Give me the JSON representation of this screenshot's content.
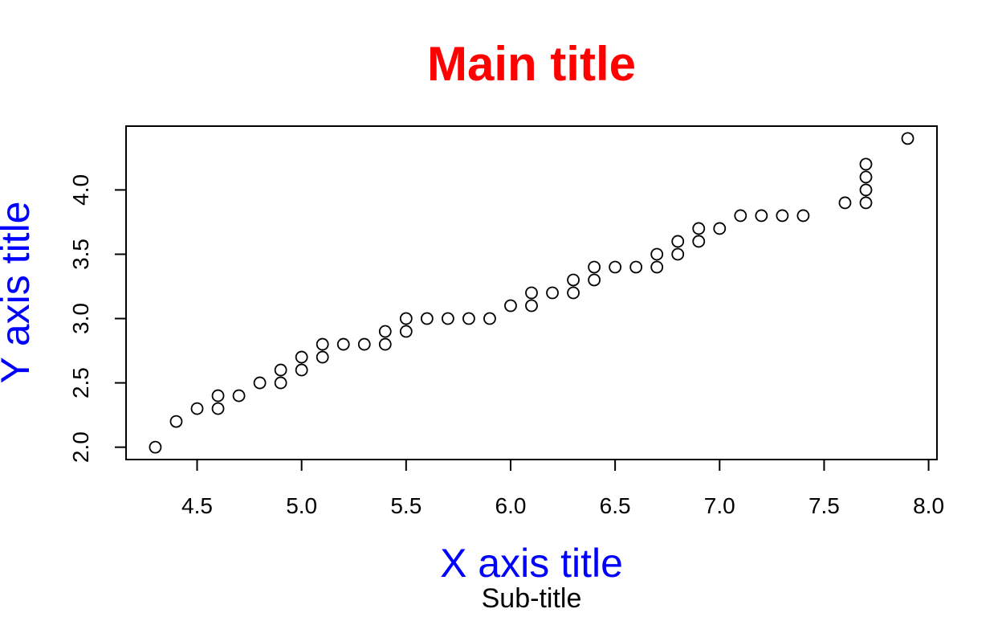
{
  "chart_data": {
    "type": "scatter",
    "title": "Main title",
    "subtitle": "Sub-title",
    "xlabel": "X axis title",
    "ylabel": "Y axis title",
    "colors": {
      "title": "#ff0000",
      "axis_titles": "#0000ff",
      "subtitle": "#000000",
      "points": "#000000"
    },
    "xlim": [
      4.16,
      8.04
    ],
    "ylim": [
      1.904,
      4.496
    ],
    "x_ticks": [
      "4.5",
      "5.0",
      "5.5",
      "6.0",
      "6.5",
      "7.0",
      "7.5",
      "8.0"
    ],
    "y_ticks": [
      "2.0",
      "2.5",
      "3.0",
      "3.5",
      "4.0"
    ],
    "grid": false,
    "marker": "open-circle",
    "points": [
      [
        4.3,
        2.0
      ],
      [
        4.4,
        2.2
      ],
      [
        4.5,
        2.3
      ],
      [
        4.6,
        2.3
      ],
      [
        4.6,
        2.4
      ],
      [
        4.7,
        2.4
      ],
      [
        4.8,
        2.5
      ],
      [
        4.9,
        2.5
      ],
      [
        4.9,
        2.6
      ],
      [
        5.0,
        2.6
      ],
      [
        5.0,
        2.7
      ],
      [
        5.1,
        2.7
      ],
      [
        5.1,
        2.8
      ],
      [
        5.2,
        2.8
      ],
      [
        5.3,
        2.8
      ],
      [
        5.4,
        2.8
      ],
      [
        5.4,
        2.9
      ],
      [
        5.5,
        2.9
      ],
      [
        5.5,
        3.0
      ],
      [
        5.6,
        3.0
      ],
      [
        5.7,
        3.0
      ],
      [
        5.8,
        3.0
      ],
      [
        5.9,
        3.0
      ],
      [
        6.0,
        3.1
      ],
      [
        6.1,
        3.1
      ],
      [
        6.1,
        3.2
      ],
      [
        6.2,
        3.2
      ],
      [
        6.3,
        3.2
      ],
      [
        6.3,
        3.3
      ],
      [
        6.4,
        3.3
      ],
      [
        6.4,
        3.4
      ],
      [
        6.5,
        3.4
      ],
      [
        6.6,
        3.4
      ],
      [
        6.7,
        3.4
      ],
      [
        6.7,
        3.5
      ],
      [
        6.8,
        3.5
      ],
      [
        6.8,
        3.6
      ],
      [
        6.9,
        3.6
      ],
      [
        6.9,
        3.7
      ],
      [
        7.0,
        3.7
      ],
      [
        7.1,
        3.8
      ],
      [
        7.2,
        3.8
      ],
      [
        7.3,
        3.8
      ],
      [
        7.4,
        3.8
      ],
      [
        7.6,
        3.9
      ],
      [
        7.7,
        3.9
      ],
      [
        7.7,
        4.0
      ],
      [
        7.7,
        4.1
      ],
      [
        7.7,
        4.2
      ],
      [
        7.9,
        4.4
      ]
    ]
  }
}
